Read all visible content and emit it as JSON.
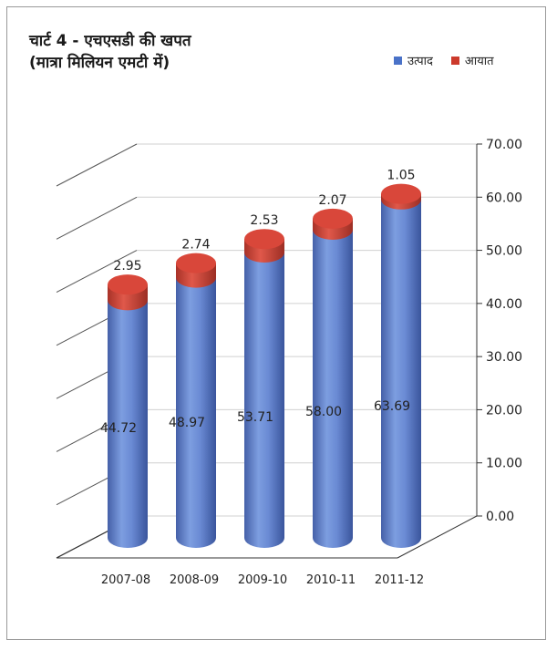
{
  "chart_data": {
    "type": "bar",
    "title_line1": "चार्ट 4 - एचएसडी की खपत",
    "title_line2": "(मात्रा मिलियन एमटी में)",
    "categories": [
      "2007-08",
      "2008-09",
      "2009-10",
      "2010-11",
      "2011-12"
    ],
    "series": [
      {
        "name": "उत्पाद",
        "color": "#5b7fc9",
        "values": [
          44.72,
          48.97,
          53.71,
          58.0,
          63.69
        ]
      },
      {
        "name": "आयात",
        "color": "#cc4a3c",
        "values": [
          2.95,
          2.74,
          2.53,
          2.07,
          1.05
        ]
      }
    ],
    "value_labels": {
      "produce": [
        "44.72",
        "48.97",
        "53.71",
        "58.00",
        "63.69"
      ],
      "import": [
        "2.95",
        "2.74",
        "2.53",
        "2.07",
        "1.05"
      ]
    },
    "y_ticks": [
      "0.00",
      "10.00",
      "20.00",
      "30.00",
      "40.00",
      "50.00",
      "60.00",
      "70.00"
    ],
    "ylim": [
      0,
      70
    ],
    "stacked": true,
    "style": "3d-cylinder",
    "legend_position": "top-right",
    "grid": true
  }
}
